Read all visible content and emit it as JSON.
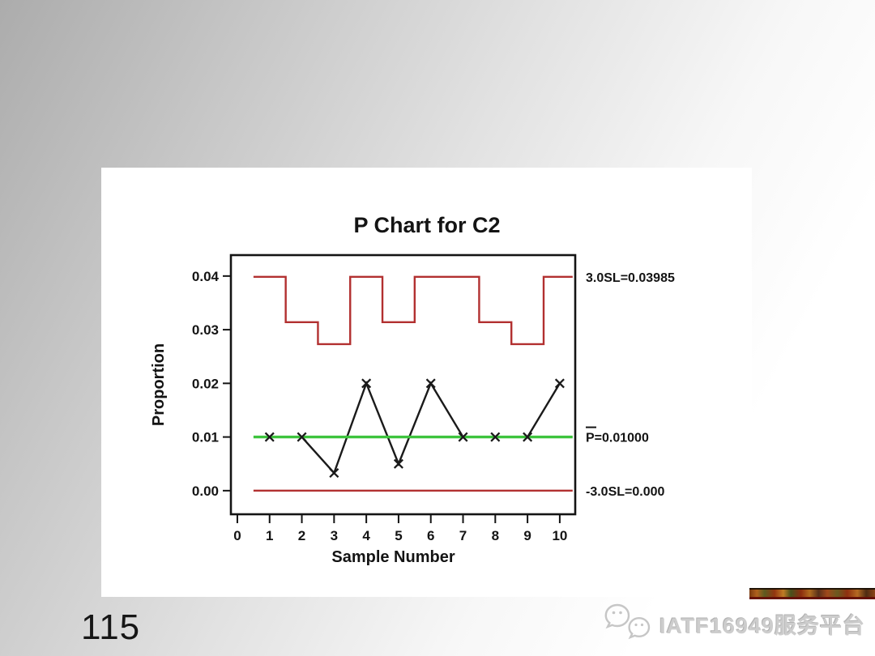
{
  "page": {
    "number": "115"
  },
  "watermark": {
    "icon": "wechat-icon",
    "text": "IATF16949服务平台"
  },
  "chart_data": {
    "type": "line",
    "subtype": "p-control-chart",
    "title": "P Chart for C2",
    "xlabel": "Sample Number",
    "ylabel": "Proportion",
    "x": [
      1,
      2,
      3,
      4,
      5,
      6,
      7,
      8,
      9,
      10
    ],
    "values": [
      0.01,
      0.01,
      0.0033,
      0.02,
      0.005,
      0.02,
      0.01,
      0.01,
      0.01,
      0.02
    ],
    "marker": "x",
    "x_ticks": [
      "0",
      "1",
      "2",
      "3",
      "4",
      "5",
      "6",
      "7",
      "8",
      "9",
      "10"
    ],
    "x_tick_values": [
      0,
      1,
      2,
      3,
      4,
      5,
      6,
      7,
      8,
      9,
      10
    ],
    "y_ticks": [
      "0.00",
      "0.01",
      "0.02",
      "0.03",
      "0.04"
    ],
    "y_tick_values": [
      0,
      0.01,
      0.02,
      0.03,
      0.04
    ],
    "xlim": [
      -0.2,
      10.48
    ],
    "ylim": [
      -0.0044,
      0.0439
    ],
    "grid": false,
    "center_line_value": 0.01,
    "lcl_value": 0.0,
    "ucl_value": 0.03985,
    "limit_line_extent": [
      0.5,
      10.4
    ],
    "ucl_segments": [
      [
        0.5,
        1.5,
        0.03985
      ],
      [
        1.5,
        2.5,
        0.0314
      ],
      [
        2.5,
        3.5,
        0.0273
      ],
      [
        3.5,
        4.5,
        0.03985
      ],
      [
        4.5,
        5.5,
        0.0314
      ],
      [
        5.5,
        7.5,
        0.03985
      ],
      [
        7.5,
        8.5,
        0.0314
      ],
      [
        8.5,
        9.5,
        0.0273
      ],
      [
        9.5,
        10.4,
        0.03985
      ]
    ],
    "labels": {
      "ucl": "3.0SL=0.03985",
      "center_p": "P",
      "center_rest": "=0.01000",
      "lcl": "-3.0SL=0.000"
    },
    "colors": {
      "limit_line": "#b23030",
      "center_line": "#3dc43d",
      "data_line": "#1a1a1a",
      "text": "#141414"
    }
  }
}
